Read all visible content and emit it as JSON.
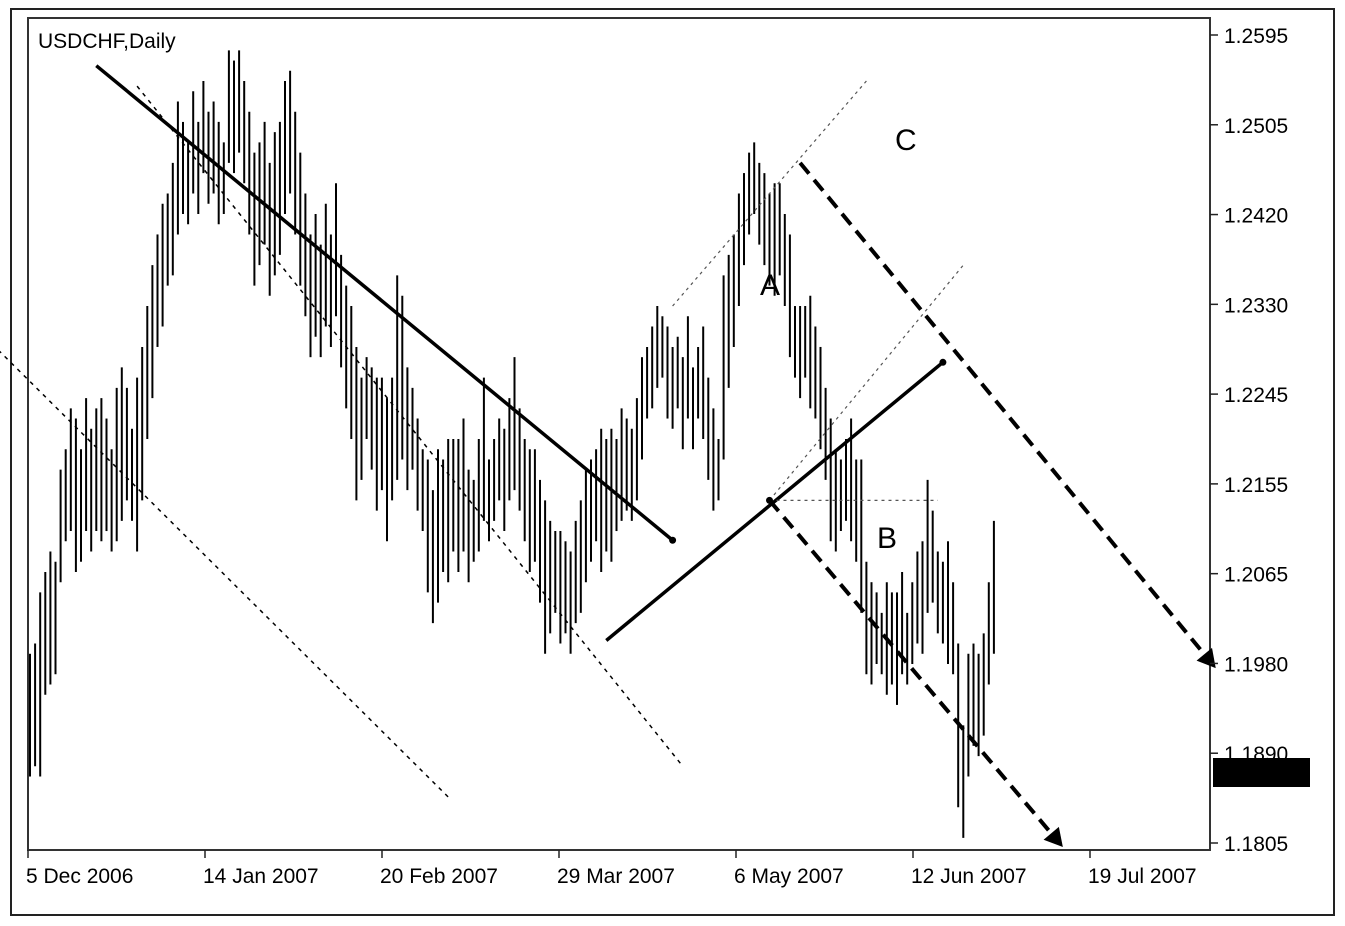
{
  "chart_data": {
    "type": "bar",
    "subtype": "ohlc",
    "title": "USDCHF,Daily",
    "x_tick_labels": [
      "5 Dec 2006",
      "14 Jan 2007",
      "20 Feb 2007",
      "29 Mar 2007",
      "6 May 2007",
      "12 Jun 2007",
      "19 Jul 2007"
    ],
    "y_tick_labels": [
      "1.2595",
      "1.2505",
      "1.2420",
      "1.2330",
      "1.2245",
      "1.2155",
      "1.2065",
      "1.1980",
      "1.1890",
      "1.1805"
    ],
    "ylim": [
      1.1805,
      1.2595
    ],
    "current_price": "1.1872",
    "point_labels": [
      "A",
      "B",
      "C"
    ],
    "bars_low_high": [
      [
        1.187,
        1.199
      ],
      [
        1.188,
        1.2
      ],
      [
        1.187,
        1.205
      ],
      [
        1.195,
        1.207
      ],
      [
        1.196,
        1.209
      ],
      [
        1.197,
        1.208
      ],
      [
        1.206,
        1.217
      ],
      [
        1.21,
        1.219
      ],
      [
        1.211,
        1.223
      ],
      [
        1.207,
        1.222
      ],
      [
        1.208,
        1.219
      ],
      [
        1.211,
        1.224
      ],
      [
        1.209,
        1.221
      ],
      [
        1.211,
        1.223
      ],
      [
        1.21,
        1.224
      ],
      [
        1.211,
        1.222
      ],
      [
        1.209,
        1.219
      ],
      [
        1.21,
        1.225
      ],
      [
        1.212,
        1.227
      ],
      [
        1.214,
        1.225
      ],
      [
        1.212,
        1.221
      ],
      [
        1.209,
        1.226
      ],
      [
        1.214,
        1.229
      ],
      [
        1.22,
        1.233
      ],
      [
        1.224,
        1.237
      ],
      [
        1.229,
        1.24
      ],
      [
        1.231,
        1.243
      ],
      [
        1.235,
        1.244
      ],
      [
        1.236,
        1.247
      ],
      [
        1.24,
        1.253
      ],
      [
        1.242,
        1.251
      ],
      [
        1.241,
        1.249
      ],
      [
        1.244,
        1.254
      ],
      [
        1.242,
        1.251
      ],
      [
        1.246,
        1.255
      ],
      [
        1.243,
        1.252
      ],
      [
        1.244,
        1.253
      ],
      [
        1.241,
        1.251
      ],
      [
        1.242,
        1.249
      ],
      [
        1.247,
        1.258
      ],
      [
        1.246,
        1.257
      ],
      [
        1.248,
        1.258
      ],
      [
        1.245,
        1.255
      ],
      [
        1.24,
        1.252
      ],
      [
        1.235,
        1.248
      ],
      [
        1.237,
        1.249
      ],
      [
        1.239,
        1.251
      ],
      [
        1.234,
        1.247
      ],
      [
        1.236,
        1.25
      ],
      [
        1.238,
        1.251
      ],
      [
        1.242,
        1.255
      ],
      [
        1.244,
        1.256
      ],
      [
        1.24,
        1.252
      ],
      [
        1.235,
        1.248
      ],
      [
        1.232,
        1.244
      ],
      [
        1.228,
        1.24
      ],
      [
        1.23,
        1.242
      ],
      [
        1.228,
        1.239
      ],
      [
        1.231,
        1.243
      ],
      [
        1.229,
        1.24
      ],
      [
        1.232,
        1.245
      ],
      [
        1.227,
        1.238
      ],
      [
        1.223,
        1.235
      ],
      [
        1.22,
        1.233
      ],
      [
        1.214,
        1.229
      ],
      [
        1.216,
        1.226
      ],
      [
        1.22,
        1.228
      ],
      [
        1.217,
        1.227
      ],
      [
        1.213,
        1.226
      ],
      [
        1.215,
        1.226
      ],
      [
        1.21,
        1.224
      ],
      [
        1.214,
        1.226
      ],
      [
        1.216,
        1.236
      ],
      [
        1.218,
        1.234
      ],
      [
        1.215,
        1.227
      ],
      [
        1.217,
        1.225
      ],
      [
        1.213,
        1.222
      ],
      [
        1.211,
        1.219
      ],
      [
        1.205,
        1.218
      ],
      [
        1.202,
        1.215
      ],
      [
        1.204,
        1.219
      ],
      [
        1.207,
        1.218
      ],
      [
        1.206,
        1.22
      ],
      [
        1.209,
        1.22
      ],
      [
        1.207,
        1.22
      ],
      [
        1.209,
        1.222
      ],
      [
        1.206,
        1.217
      ],
      [
        1.208,
        1.216
      ],
      [
        1.209,
        1.22
      ],
      [
        1.212,
        1.226
      ],
      [
        1.21,
        1.218
      ],
      [
        1.212,
        1.22
      ],
      [
        1.214,
        1.222
      ],
      [
        1.211,
        1.221
      ],
      [
        1.214,
        1.224
      ],
      [
        1.215,
        1.228
      ],
      [
        1.213,
        1.223
      ],
      [
        1.21,
        1.22
      ],
      [
        1.207,
        1.219
      ],
      [
        1.208,
        1.219
      ],
      [
        1.204,
        1.216
      ],
      [
        1.199,
        1.214
      ],
      [
        1.201,
        1.212
      ],
      [
        1.203,
        1.211
      ],
      [
        1.2,
        1.211
      ],
      [
        1.201,
        1.21
      ],
      [
        1.199,
        1.209
      ],
      [
        1.202,
        1.212
      ],
      [
        1.203,
        1.214
      ],
      [
        1.206,
        1.217
      ],
      [
        1.208,
        1.218
      ],
      [
        1.21,
        1.219
      ],
      [
        1.207,
        1.221
      ],
      [
        1.209,
        1.22
      ],
      [
        1.208,
        1.221
      ],
      [
        1.211,
        1.22
      ],
      [
        1.212,
        1.223
      ],
      [
        1.213,
        1.222
      ],
      [
        1.212,
        1.221
      ],
      [
        1.214,
        1.224
      ],
      [
        1.218,
        1.228
      ],
      [
        1.222,
        1.229
      ],
      [
        1.223,
        1.231
      ],
      [
        1.225,
        1.233
      ],
      [
        1.226,
        1.232
      ],
      [
        1.222,
        1.231
      ],
      [
        1.221,
        1.229
      ],
      [
        1.223,
        1.23
      ],
      [
        1.219,
        1.228
      ],
      [
        1.222,
        1.232
      ],
      [
        1.219,
        1.227
      ],
      [
        1.222,
        1.229
      ],
      [
        1.22,
        1.231
      ],
      [
        1.216,
        1.226
      ],
      [
        1.213,
        1.223
      ],
      [
        1.214,
        1.22
      ],
      [
        1.218,
        1.236
      ],
      [
        1.225,
        1.238
      ],
      [
        1.229,
        1.24
      ],
      [
        1.233,
        1.244
      ],
      [
        1.237,
        1.246
      ],
      [
        1.24,
        1.248
      ],
      [
        1.242,
        1.249
      ],
      [
        1.239,
        1.247
      ],
      [
        1.237,
        1.246
      ],
      [
        1.235,
        1.244
      ],
      [
        1.234,
        1.245
      ],
      [
        1.236,
        1.245
      ],
      [
        1.233,
        1.242
      ],
      [
        1.228,
        1.24
      ],
      [
        1.226,
        1.233
      ],
      [
        1.224,
        1.233
      ],
      [
        1.226,
        1.233
      ],
      [
        1.223,
        1.234
      ],
      [
        1.222,
        1.231
      ],
      [
        1.219,
        1.229
      ],
      [
        1.216,
        1.225
      ],
      [
        1.21,
        1.222
      ],
      [
        1.209,
        1.219
      ],
      [
        1.211,
        1.218
      ],
      [
        1.212,
        1.22
      ],
      [
        1.21,
        1.222
      ],
      [
        1.208,
        1.218
      ],
      [
        1.203,
        1.218
      ],
      [
        1.197,
        1.208
      ],
      [
        1.196,
        1.206
      ],
      [
        1.198,
        1.205
      ],
      [
        1.197,
        1.203
      ],
      [
        1.195,
        1.206
      ],
      [
        1.196,
        1.205
      ],
      [
        1.194,
        1.205
      ],
      [
        1.197,
        1.207
      ],
      [
        1.196,
        1.203
      ],
      [
        1.198,
        1.206
      ],
      [
        1.2,
        1.209
      ],
      [
        1.199,
        1.21
      ],
      [
        1.203,
        1.216
      ],
      [
        1.204,
        1.213
      ],
      [
        1.201,
        1.209
      ],
      [
        1.2,
        1.208
      ],
      [
        1.198,
        1.21
      ],
      [
        1.197,
        1.206
      ],
      [
        1.184,
        1.2
      ],
      [
        1.181,
        1.192
      ],
      [
        1.187,
        1.199
      ],
      [
        1.19,
        1.2
      ],
      [
        1.189,
        1.199
      ],
      [
        1.191,
        1.201
      ],
      [
        1.196,
        1.206
      ],
      [
        1.199,
        1.212
      ]
    ],
    "annotation_lines": [
      {
        "style": "solid-bold",
        "from": [
          "day 13",
          1.2565
        ],
        "to": [
          "day 126",
          1.2101
        ]
      },
      {
        "style": "solid-bold",
        "from": [
          "day 113",
          1.2003
        ],
        "to": [
          "day 179",
          1.2275
        ]
      },
      {
        "style": "dotted",
        "from": [
          "day 21",
          1.2545
        ],
        "to": [
          "day 128",
          1.188
        ]
      },
      {
        "style": "dotted",
        "from": [
          "day -25",
          1.238
        ],
        "to": [
          "day 82",
          1.185
        ]
      },
      {
        "style": "dashed-bold",
        "from": [
          "day 151",
          1.247
        ],
        "to": [
          "day 231",
          1.1985
        ]
      },
      {
        "style": "dashed-bold",
        "from": [
          "day 145",
          1.214
        ],
        "to": [
          "day 201",
          1.181
        ]
      },
      {
        "style": "dotted-thin",
        "from": [
          "day 126",
          1.233
        ],
        "to": [
          "day 164",
          1.255
        ]
      },
      {
        "style": "dotted-thin",
        "from": [
          "day 145",
          1.214
        ],
        "to": [
          "day 183",
          1.237
        ]
      },
      {
        "style": "dotted-thin",
        "from": [
          "day 145",
          1.214
        ],
        "to": [
          "day 178",
          1.214
        ]
      }
    ]
  }
}
